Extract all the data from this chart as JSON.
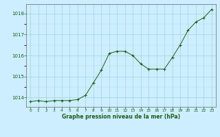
{
  "x": [
    0,
    1,
    2,
    3,
    4,
    5,
    6,
    7,
    8,
    9,
    10,
    11,
    12,
    13,
    14,
    15,
    16,
    17,
    18,
    19,
    20,
    21,
    22,
    23
  ],
  "y": [
    1013.8,
    1013.85,
    1013.8,
    1013.85,
    1013.85,
    1013.85,
    1013.9,
    1014.1,
    1014.7,
    1015.3,
    1016.1,
    1016.2,
    1016.2,
    1016.0,
    1015.6,
    1015.35,
    1015.35,
    1015.35,
    1015.9,
    1016.5,
    1017.2,
    1017.6,
    1017.8,
    1018.2
  ],
  "line_color": "#1a5c1a",
  "marker": "+",
  "marker_color": "#1a5c1a",
  "bg_color": "#cceeff",
  "xlabel": "Graphe pression niveau de la mer (hPa)",
  "xlabel_color": "#1a5c1a",
  "yticks": [
    1014,
    1015,
    1016,
    1017,
    1018
  ],
  "xticks": [
    0,
    1,
    2,
    3,
    4,
    5,
    6,
    7,
    8,
    9,
    10,
    11,
    12,
    13,
    14,
    15,
    16,
    17,
    18,
    19,
    20,
    21,
    22,
    23
  ],
  "ylim": [
    1013.55,
    1018.45
  ],
  "xlim": [
    -0.5,
    23.5
  ]
}
